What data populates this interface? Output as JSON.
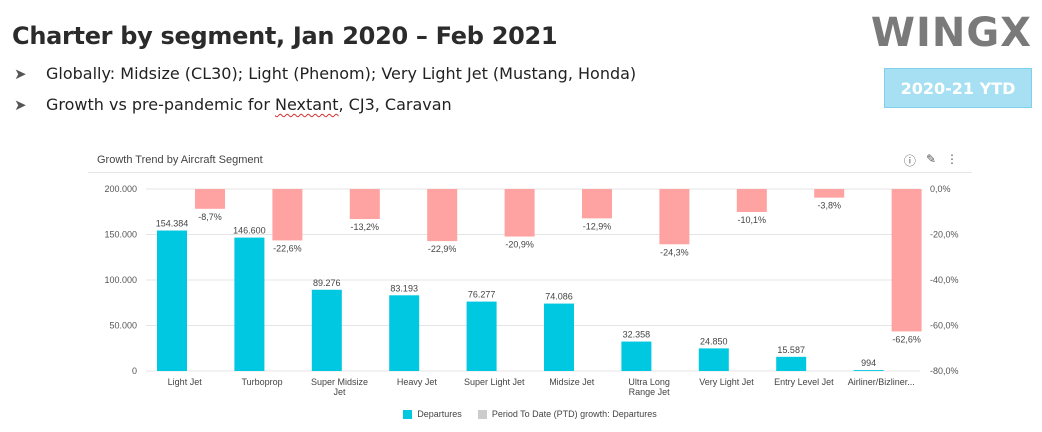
{
  "slide": {
    "title": "Charter by segment, Jan 2020 – Feb 2021",
    "bullets": [
      {
        "pre": "Globally: Midsize (CL30); Light (Phenom); Very Light Jet (Mustang, Honda)",
        "flag": "",
        "post": ""
      },
      {
        "pre": "Growth vs pre-pandemic for ",
        "flag": "Nextant",
        "post": ", CJ3, Caravan"
      }
    ],
    "logo": "WINGX",
    "badge": "2020-21 YTD",
    "bullet_icon": "arrow-right-icon"
  },
  "panel": {
    "title": "Growth Trend by Aircraft Segment",
    "tools": [
      {
        "icon": "info-icon",
        "glyph": "ⓘ"
      },
      {
        "icon": "edit-icon",
        "glyph": "✎"
      },
      {
        "icon": "more-icon",
        "glyph": "⋮"
      }
    ]
  },
  "colors": {
    "departures": "#00c8e1",
    "growth": "#ffa2a2",
    "growth_legend": "#cccccc",
    "grid": "#e4e4e4"
  },
  "chart_data": {
    "type": "bar",
    "title": "Growth Trend by Aircraft Segment",
    "categories": [
      "Light Jet",
      "Turboprop",
      "Super Midsize Jet",
      "Heavy Jet",
      "Super Light Jet",
      "Midsize Jet",
      "Ultra Long Range Jet",
      "Very Light Jet",
      "Entry Level Jet",
      "Airliner/Bizliner..."
    ],
    "category_lines": [
      [
        "Light Jet"
      ],
      [
        "Turboprop"
      ],
      [
        "Super Midsize",
        "Jet"
      ],
      [
        "Heavy Jet"
      ],
      [
        "Super Light Jet"
      ],
      [
        "Midsize Jet"
      ],
      [
        "Ultra Long",
        "Range Jet"
      ],
      [
        "Very Light Jet"
      ],
      [
        "Entry Level Jet"
      ],
      [
        "Airliner/Bizliner..."
      ]
    ],
    "series": [
      {
        "name": "Departures",
        "axis": "left",
        "values": [
          154384,
          146600,
          89276,
          83193,
          76277,
          74086,
          32358,
          24850,
          15587,
          994
        ],
        "labels": [
          "154.384",
          "146.600",
          "89.276",
          "83.193",
          "76.277",
          "74.086",
          "32.358",
          "24.850",
          "15.587",
          "994"
        ]
      },
      {
        "name": "Period To Date (PTD) growth: Departures",
        "axis": "right",
        "values": [
          -8.7,
          -22.6,
          -13.2,
          -22.9,
          -20.9,
          -12.9,
          -24.3,
          -10.1,
          -3.8,
          -62.6
        ],
        "labels": [
          "-8,7%",
          "-22,6%",
          "-13,2%",
          "-22,9%",
          "-20,9%",
          "-12,9%",
          "-24,3%",
          "-10,1%",
          "-3,8%",
          "-62,6%"
        ]
      }
    ],
    "y_left": {
      "min": 0,
      "max": 200000,
      "ticks": [
        0,
        50000,
        100000,
        150000,
        200000
      ],
      "tick_labels": [
        "0",
        "50.000",
        "100.000",
        "150.000",
        "200.000"
      ]
    },
    "y_right": {
      "min": -80,
      "max": 0,
      "ticks": [
        0,
        -20,
        -40,
        -60,
        -80
      ],
      "tick_labels": [
        "0,0%",
        "-20,0%",
        "-40,0%",
        "-60,0%",
        "-80,0%"
      ]
    },
    "grid": true,
    "legend": "bottom"
  }
}
